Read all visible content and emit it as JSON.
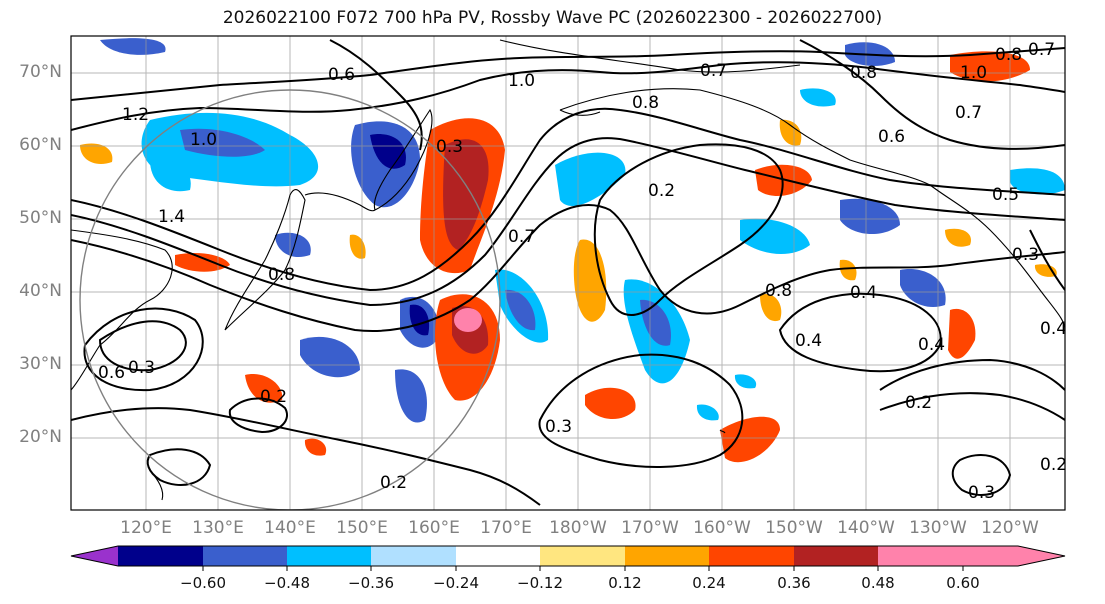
{
  "title": "2026022100 F072 700 hPa PV, Rossby Wave PC (2026022300 - 2026022700)",
  "lat_labels": [
    "70°N",
    "60°N",
    "50°N",
    "40°N",
    "30°N",
    "20°N"
  ],
  "lon_labels": [
    "120°E",
    "130°E",
    "140°E",
    "150°E",
    "160°E",
    "170°E",
    "180°W",
    "170°W",
    "160°W",
    "150°W",
    "140°W",
    "130°W",
    "120°W"
  ],
  "colorbar": {
    "ticks": [
      "−0.60",
      "−0.48",
      "−0.36",
      "−0.24",
      "−0.12",
      "0.12",
      "0.24",
      "0.36",
      "0.48",
      "0.60"
    ],
    "colors": [
      "#9a32cd",
      "#00008b",
      "#3a5fcd",
      "#00bfff",
      "#b0e0ff",
      "#ffffff",
      "#ffe680",
      "#ffa500",
      "#ff4500",
      "#b22222",
      "#ff82ab"
    ]
  },
  "contour_labels": [
    "0.6",
    "1.0",
    "0.7",
    "0.8",
    "0.8",
    "0.7",
    "1.0",
    "0.8",
    "0.7",
    "0.6",
    "1.2",
    "1.0",
    "1.4",
    "0.8",
    "0.6",
    "0.3",
    "0.3",
    "0.2",
    "0.7",
    "0.5",
    "0.3",
    "0.4",
    "0.4",
    "0.4",
    "0.8",
    "0.4",
    "0.2",
    "0.3",
    "0.2",
    "0.2",
    "0.3",
    "0.2"
  ],
  "projection": "Mercator",
  "lat_range": [
    10,
    75
  ],
  "lon_range": [
    "115°E",
    "115°W"
  ]
}
